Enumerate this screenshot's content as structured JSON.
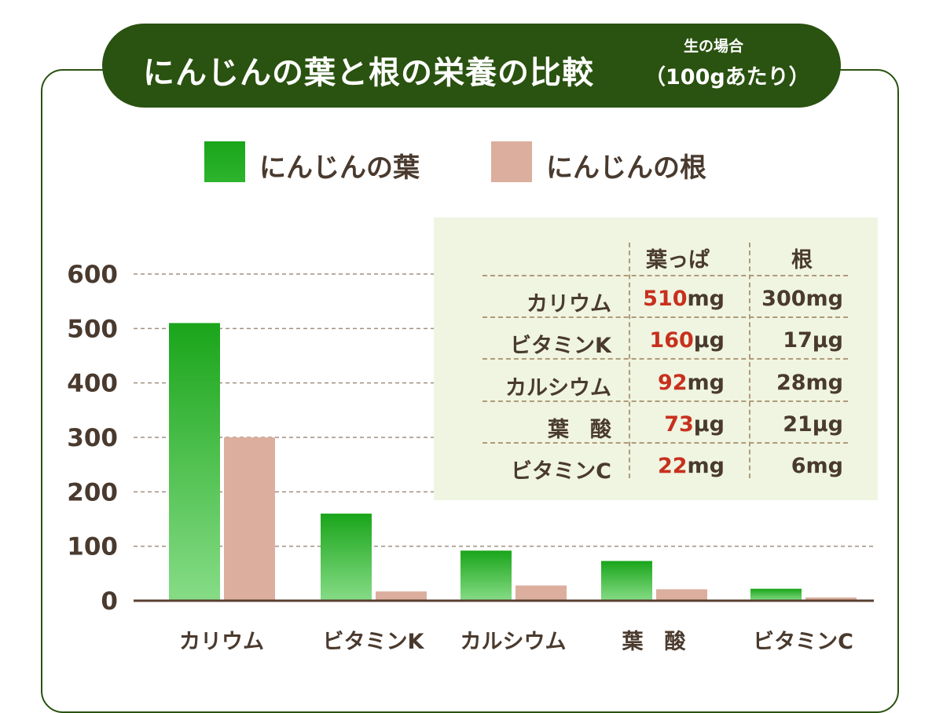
{
  "title": {
    "main": "にんじんの葉と根の栄養の比較",
    "sub": "生の場合",
    "paren": "（100gあたり）"
  },
  "colors": {
    "leaf_top": "#1aa51a",
    "leaf_bottom": "#86dc86",
    "root": "#dcae9e",
    "title_bg": "#2a5210",
    "highlight": "#c8301e",
    "table_bg": "#eff5e1"
  },
  "chart_data": {
    "type": "bar",
    "categories": [
      "カリウム",
      "ビタミンK",
      "カルシウム",
      "葉　酸",
      "ビタミンC"
    ],
    "series": [
      {
        "name": "にんじんの葉",
        "values": [
          510,
          160,
          92,
          73,
          22
        ]
      },
      {
        "name": "にんじんの根",
        "values": [
          300,
          17,
          28,
          21,
          6
        ]
      }
    ],
    "yticks": [
      "0",
      "100",
      "200",
      "300",
      "400",
      "500",
      "600"
    ],
    "ylim": [
      0,
      600
    ],
    "grid": true,
    "legend": "top"
  },
  "table": {
    "headers": [
      "葉っぱ",
      "根"
    ],
    "rows": [
      {
        "label": "カリウム",
        "leaf_num": "510",
        "leaf_unit": "mg",
        "root": "300mg"
      },
      {
        "label": "ビタミンK",
        "leaf_num": "160",
        "leaf_unit": "μg",
        "root": "17μg"
      },
      {
        "label": "カルシウム",
        "leaf_num": "92",
        "leaf_unit": "mg",
        "root": "28mg"
      },
      {
        "label": "葉　酸",
        "leaf_num": "73",
        "leaf_unit": "μg",
        "root": "21μg"
      },
      {
        "label": "ビタミンC",
        "leaf_num": "22",
        "leaf_unit": "mg",
        "root": "6mg"
      }
    ]
  }
}
